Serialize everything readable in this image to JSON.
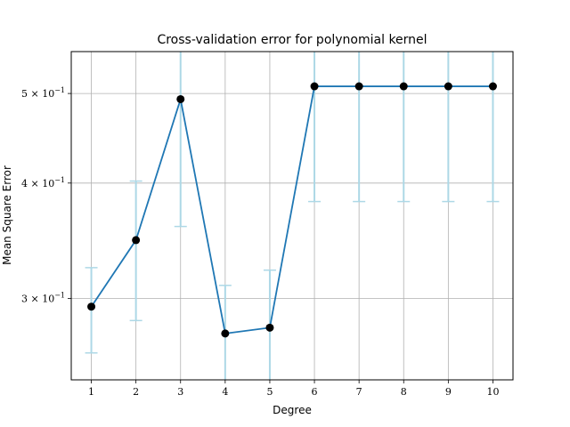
{
  "chart_data": {
    "type": "line",
    "title": "Cross-validation error for polynomial kernel",
    "xlabel": "Degree",
    "ylabel": "Mean Square Error",
    "yscale": "log",
    "ylim": [
      0.245,
      0.555
    ],
    "xlim": [
      0.55,
      10.45
    ],
    "grid": true,
    "x": [
      1,
      2,
      3,
      4,
      5,
      6,
      7,
      8,
      9,
      10
    ],
    "x_tick_labels": [
      "1",
      "2",
      "3",
      "4",
      "5",
      "6",
      "7",
      "8",
      "9",
      "10"
    ],
    "y_ticks": [
      {
        "value": 0.3,
        "mantissa": "3",
        "base": "10",
        "exponent": "−1"
      },
      {
        "value": 0.4,
        "mantissa": "4",
        "base": "10",
        "exponent": "−1"
      },
      {
        "value": 0.5,
        "mantissa": "5",
        "base": "10",
        "exponent": "−1"
      }
    ],
    "series": [
      {
        "values": [
          0.294,
          0.347,
          0.493,
          0.275,
          0.279,
          0.509,
          0.509,
          0.509,
          0.509,
          0.509
        ],
        "error_low": [
          0.262,
          0.284,
          0.359,
          0.239,
          0.239,
          0.382,
          0.382,
          0.382,
          0.382,
          0.382
        ],
        "error_high": [
          0.324,
          0.402,
          0.57,
          0.31,
          0.322,
          0.57,
          0.57,
          0.57,
          0.57,
          0.57
        ],
        "color": "#1f77b4",
        "marker_color": "#000000",
        "error_color": "#add8e6"
      }
    ],
    "colors": {
      "axis": "#000000",
      "grid": "#b0b0b0"
    }
  }
}
